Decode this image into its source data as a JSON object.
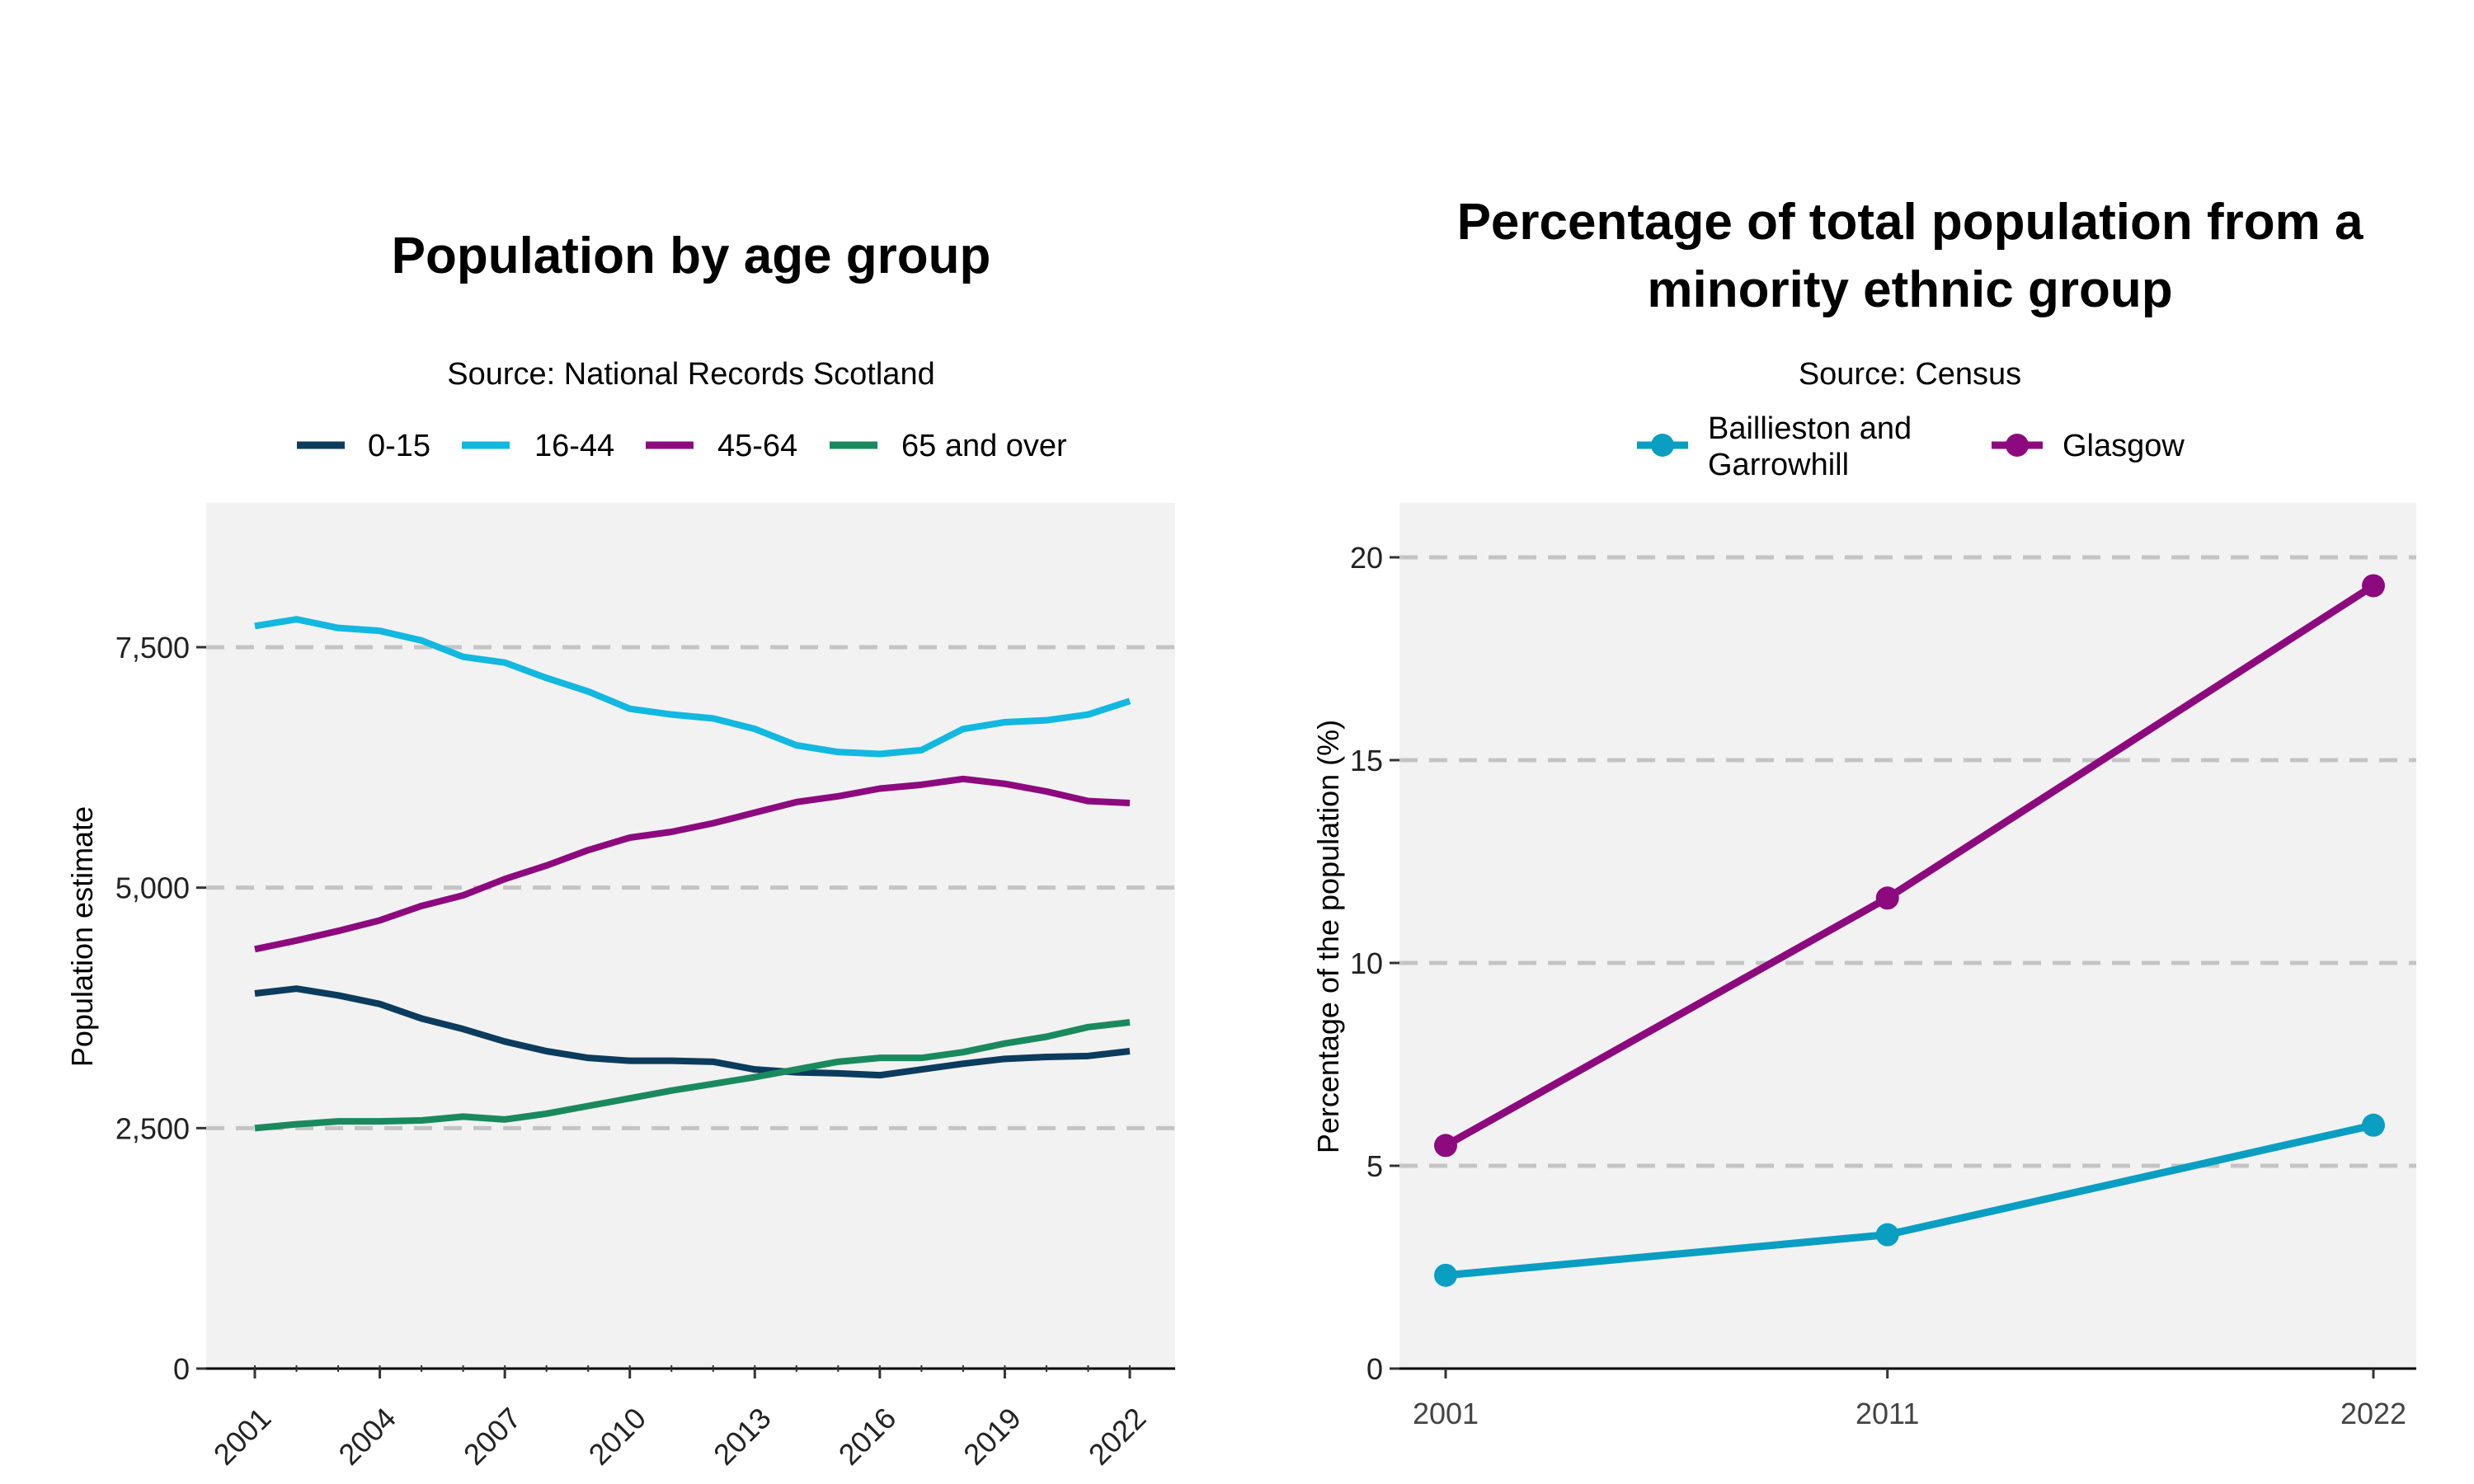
{
  "chart_data": [
    {
      "type": "line",
      "title": "Population by age group",
      "subtitle": "Source: National Records Scotland",
      "xlabel": "",
      "ylabel": "Population estimate",
      "xlim": [
        2001,
        2022
      ],
      "ylim": [
        0,
        9000
      ],
      "yticks": [
        0,
        2500,
        5000,
        7500
      ],
      "ytick_labels": [
        "0",
        "2,500",
        "5,000",
        "7,500"
      ],
      "xticks": [
        2001,
        2004,
        2007,
        2010,
        2013,
        2016,
        2019,
        2022
      ],
      "xtick_labels": [
        "2001",
        "2004",
        "2007",
        "2010",
        "2013",
        "2016",
        "2019",
        "2022"
      ],
      "grid": "horizontal dashed",
      "legend_position": "top",
      "x": [
        2001,
        2002,
        2003,
        2004,
        2005,
        2006,
        2007,
        2008,
        2009,
        2010,
        2011,
        2012,
        2013,
        2014,
        2015,
        2016,
        2017,
        2018,
        2019,
        2020,
        2021,
        2022
      ],
      "series": [
        {
          "name": "0-15",
          "color": "#0b3c5d",
          "values": [
            3900,
            3950,
            3880,
            3790,
            3640,
            3530,
            3400,
            3300,
            3230,
            3200,
            3200,
            3190,
            3110,
            3080,
            3070,
            3050,
            3110,
            3170,
            3220,
            3240,
            3250,
            3300
          ]
        },
        {
          "name": "16-44",
          "color": "#12b8df",
          "values": [
            7720,
            7790,
            7700,
            7670,
            7570,
            7400,
            7340,
            7180,
            7040,
            6860,
            6800,
            6760,
            6650,
            6480,
            6410,
            6390,
            6430,
            6650,
            6720,
            6740,
            6800,
            6940
          ]
        },
        {
          "name": "45-64",
          "color": "#8d0a7e",
          "values": [
            4360,
            4450,
            4550,
            4660,
            4810,
            4920,
            5090,
            5230,
            5390,
            5520,
            5580,
            5670,
            5780,
            5890,
            5950,
            6030,
            6070,
            6130,
            6080,
            6000,
            5900,
            5880
          ]
        },
        {
          "name": "65 and over",
          "color": "#1a8a5e",
          "values": [
            2500,
            2540,
            2570,
            2570,
            2580,
            2620,
            2590,
            2650,
            2730,
            2810,
            2890,
            2960,
            3030,
            3110,
            3190,
            3230,
            3230,
            3290,
            3380,
            3450,
            3550,
            3600
          ]
        }
      ]
    },
    {
      "type": "line",
      "title": "Percentage of total population from a minority ethnic group",
      "title_lines": [
        "Percentage of total population from a",
        "minority ethnic group"
      ],
      "subtitle": "Source: Census",
      "xlabel": "",
      "ylabel": "Percentage of the population (%)",
      "xlim": [
        2001,
        2022
      ],
      "ylim": [
        0,
        21.4
      ],
      "yticks": [
        0,
        5,
        10,
        15,
        20
      ],
      "ytick_labels": [
        "0",
        "5",
        "10",
        "15",
        "20"
      ],
      "xticks": [
        2001,
        2011,
        2022
      ],
      "xtick_labels": [
        "2001",
        "2011",
        "2022"
      ],
      "grid": "horizontal dashed",
      "legend_position": "top",
      "x": [
        2001,
        2011,
        2022
      ],
      "series": [
        {
          "name": "Baillieston and Garrowhill",
          "legend_lines": [
            "Baillieston and",
            "Garrowhill"
          ],
          "color": "#0a9ec2",
          "values": [
            2.3,
            3.3,
            6.0
          ]
        },
        {
          "name": "Glasgow",
          "legend_lines": [
            "Glasgow"
          ],
          "color": "#8d0a7e",
          "values": [
            5.5,
            11.6,
            19.3
          ]
        }
      ]
    }
  ]
}
